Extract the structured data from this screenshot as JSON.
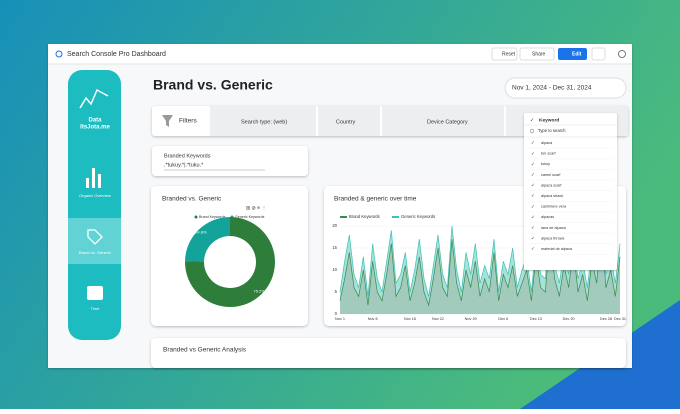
{
  "header": {
    "title": "Search Console Pro Dashboard",
    "buttons": [
      "Reset",
      "Share",
      "Edit"
    ]
  },
  "sidebar": {
    "brand": [
      "Data",
      "ItsJota.me"
    ],
    "items": [
      "Organic Overview",
      "Brand vs. Generic",
      "Time"
    ]
  },
  "page": {
    "title": "Brand vs. Generic",
    "date_range": "Nov 1, 2024 - Dec 31, 2024"
  },
  "filters": {
    "label": "Filters",
    "controls": [
      "Search type: (web)",
      "Country",
      "Device Category"
    ]
  },
  "dropdown": {
    "title": "Keyword",
    "placeholder": "Type to search",
    "options": [
      "alpaca",
      "ten scarf",
      "tukuy",
      "camel scarf",
      "alpaca scarf",
      "alpaca shawl",
      "cashmere vera",
      "alpacas",
      "lana de alpaca",
      "alpaca throws",
      "material de alpaca"
    ]
  },
  "branded_keywords": {
    "label": "Branded Keywords",
    "value": ".*tukuy.*|.*tuku.*"
  },
  "chart_data": [
    {
      "type": "pie",
      "title": "Branded vs. Generic",
      "donut": true,
      "categories": [
        "Brand Keywords",
        "Generic Keywords"
      ],
      "values": [
        75.2,
        24.8
      ],
      "value_labels": [
        "75.2%",
        "24.8%"
      ],
      "colors": [
        "#2e7d3a",
        "#14a39a"
      ]
    },
    {
      "type": "area",
      "title": "Branded & generic over time",
      "categories": [
        "Nov 1",
        null,
        null,
        null,
        null,
        null,
        null,
        "Nov 8",
        null,
        null,
        null,
        null,
        null,
        null,
        null,
        "Nov 16",
        null,
        null,
        null,
        null,
        null,
        "Nov 22",
        null,
        null,
        null,
        null,
        null,
        null,
        "Nov 29",
        null,
        null,
        null,
        null,
        null,
        null,
        "Dec 6",
        null,
        null,
        null,
        null,
        null,
        null,
        "Dec 13",
        null,
        null,
        null,
        null,
        null,
        null,
        "Dec 20",
        null,
        null,
        null,
        null,
        null,
        null,
        null,
        "Dec 28",
        null,
        null,
        "Dec 31"
      ],
      "series": [
        {
          "name": "Brand Keywords",
          "color": "#3b8a4a",
          "values": [
            3,
            8,
            14,
            6,
            4,
            10,
            2,
            12,
            5,
            3,
            9,
            16,
            4,
            6,
            11,
            3,
            7,
            13,
            5,
            2,
            8,
            15,
            6,
            4,
            17,
            7,
            3,
            10,
            6,
            12,
            4,
            8,
            5,
            14,
            3,
            9,
            6,
            11,
            4,
            7,
            10,
            3,
            13,
            6,
            5,
            18,
            8,
            4,
            11,
            6,
            15,
            5,
            9,
            3,
            12,
            7,
            19,
            6,
            10,
            4,
            13
          ]
        },
        {
          "name": "Generic Keywords",
          "color": "#3ec0b4",
          "values": [
            5,
            12,
            18,
            9,
            6,
            13,
            4,
            16,
            8,
            5,
            12,
            19,
            7,
            9,
            14,
            5,
            10,
            17,
            8,
            4,
            11,
            18,
            9,
            6,
            20,
            10,
            5,
            14,
            9,
            16,
            7,
            11,
            8,
            17,
            5,
            12,
            9,
            15,
            6,
            10,
            13,
            5,
            16,
            9,
            8,
            20,
            11,
            7,
            14,
            9,
            18,
            8,
            12,
            6,
            15,
            10,
            20,
            9,
            13,
            7,
            16
          ]
        }
      ],
      "ylim": [
        0,
        20
      ],
      "yticks": [
        0,
        5,
        10,
        15,
        20
      ]
    }
  ],
  "analysis": {
    "title": "Branded vs Generic Analysis"
  }
}
